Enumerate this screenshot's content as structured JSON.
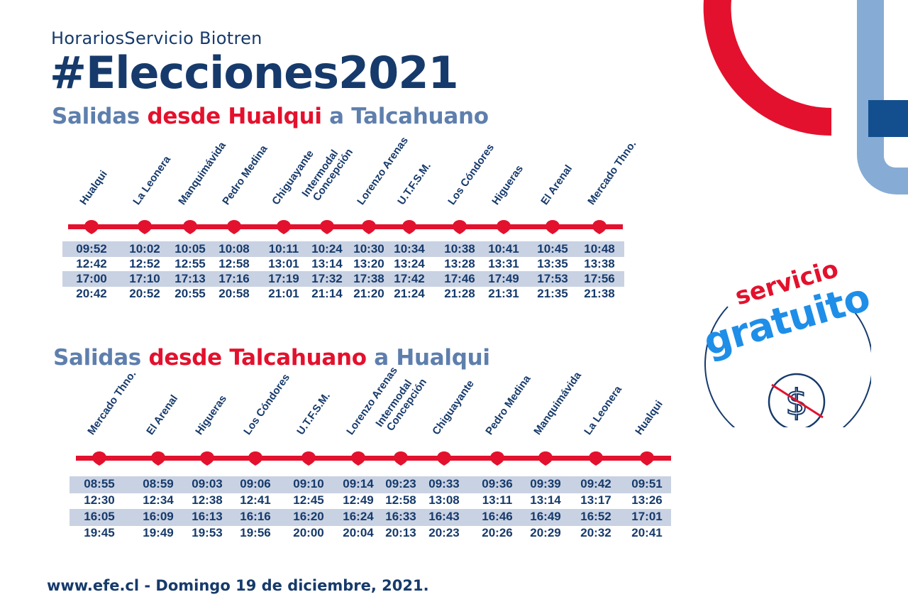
{
  "header": {
    "subtitle": "HorariosServicio Biotren",
    "title": "#Elecciones2021"
  },
  "route1": {
    "title_a": "Salidas ",
    "title_b": "desde Hualqui",
    "title_c": " a Talcahuano",
    "stations": [
      "Hualqui",
      "La Leonera",
      "Manquimávida",
      "Pedro Medina",
      "Chiguayante",
      "Intermodal Concepción",
      "Lorenzo Arenas",
      "U.T.F.S.M.",
      "Los Cóndores",
      "Higueras",
      "El Arenal",
      "Mercado Thno."
    ],
    "times": [
      [
        "09:52",
        "10:02",
        "10:05",
        "10:08",
        "10:11",
        "10:24",
        "10:30",
        "10:34",
        "10:38",
        "10:41",
        "10:45",
        "10:48"
      ],
      [
        "12:42",
        "12:52",
        "12:55",
        "12:58",
        "13:01",
        "13:14",
        "13:20",
        "13:24",
        "13:28",
        "13:31",
        "13:35",
        "13:38"
      ],
      [
        "17:00",
        "17:10",
        "17:13",
        "17:16",
        "17:19",
        "17:32",
        "17:38",
        "17:42",
        "17:46",
        "17:49",
        "17:53",
        "17:56"
      ],
      [
        "20:42",
        "20:52",
        "20:55",
        "20:58",
        "21:01",
        "21:14",
        "21:20",
        "21:24",
        "21:28",
        "21:31",
        "21:35",
        "21:38"
      ]
    ]
  },
  "route2": {
    "title_a": "Salidas ",
    "title_b": "desde Talcahuano",
    "title_c": " a Hualqui",
    "stations": [
      "Mercado Thno.",
      "El Arenal",
      "Higueras",
      "Los Cóndores",
      "U.T.F.S.M.",
      "Lorenzo Arenas",
      "Intermodal Concepción",
      "Chiguayante",
      "Pedro Medina",
      "Manquimávida",
      "La Leonera",
      "Hualqui"
    ],
    "times": [
      [
        "08:55",
        "08:59",
        "09:03",
        "09:06",
        "09:10",
        "09:14",
        "09:23",
        "09:33",
        "09:36",
        "09:39",
        "09:42",
        "09:51"
      ],
      [
        "12:30",
        "12:34",
        "12:38",
        "12:41",
        "12:45",
        "12:49",
        "12:58",
        "13:08",
        "13:11",
        "13:14",
        "13:17",
        "13:26"
      ],
      [
        "16:05",
        "16:09",
        "16:13",
        "16:16",
        "16:20",
        "16:24",
        "16:33",
        "16:43",
        "16:46",
        "16:49",
        "16:52",
        "17:01"
      ],
      [
        "19:45",
        "19:49",
        "19:53",
        "19:56",
        "20:00",
        "20:04",
        "20:13",
        "20:23",
        "20:26",
        "20:29",
        "20:32",
        "20:41"
      ]
    ]
  },
  "badge": {
    "line1": "servicio",
    "line2": "gratuito",
    "icon": "no-cost-dollar-icon"
  },
  "footer": "www.efe.cl - Domingo 19 de diciembre, 2021.",
  "colors": {
    "red": "#e3112d",
    "navy": "#163a6b",
    "steel_blue": "#5e7fad",
    "light_blue": "#86acd5",
    "band": "#c9d2e3",
    "badge_blue": "#1e8ee8"
  }
}
